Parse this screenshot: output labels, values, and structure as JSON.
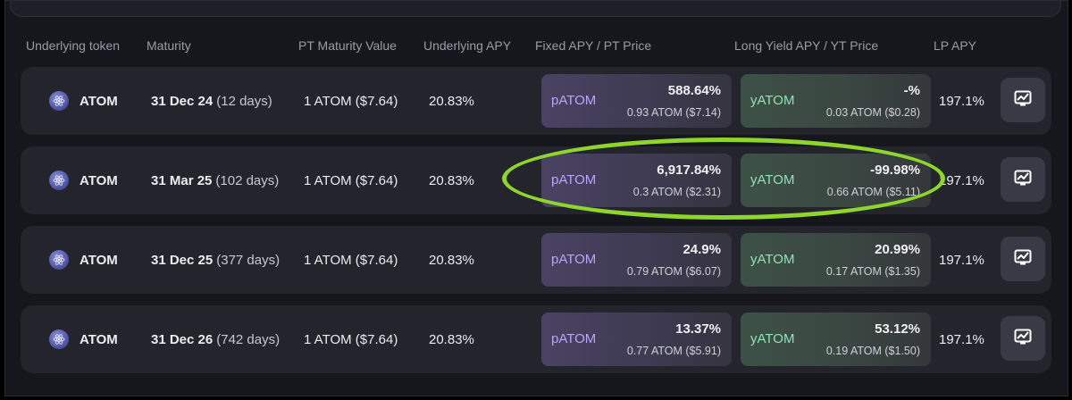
{
  "headers": {
    "underlying_token": "Underlying token",
    "maturity": "Maturity",
    "pt_maturity_value": "PT Maturity Value",
    "underlying_apy": "Underlying APY",
    "fixed_apy": "Fixed APY / PT Price",
    "long_yield_apy": "Long Yield APY / YT Price",
    "lp_apy": "LP APY"
  },
  "rows": [
    {
      "token": "ATOM",
      "maturity_date": "31 Dec 24",
      "maturity_days": "(12 days)",
      "pt_value": "1 ATOM ($7.64)",
      "underlying_apy": "20.83%",
      "pt": {
        "label": "pATOM",
        "apy": "588.64%",
        "price": "0.93 ATOM ($7.14)"
      },
      "yt": {
        "label": "yATOM",
        "apy": "-%",
        "price": "0.03 ATOM ($0.28)"
      },
      "lp_apy": "197.1%"
    },
    {
      "token": "ATOM",
      "maturity_date": "31 Mar 25",
      "maturity_days": "(102 days)",
      "pt_value": "1 ATOM ($7.64)",
      "underlying_apy": "20.83%",
      "pt": {
        "label": "pATOM",
        "apy": "6,917.84%",
        "price": "0.3 ATOM ($2.31)"
      },
      "yt": {
        "label": "yATOM",
        "apy": "-99.98%",
        "price": "0.66 ATOM ($5.11)"
      },
      "lp_apy": "197.1%"
    },
    {
      "token": "ATOM",
      "maturity_date": "31 Dec 25",
      "maturity_days": "(377 days)",
      "pt_value": "1 ATOM ($7.64)",
      "underlying_apy": "20.83%",
      "pt": {
        "label": "pATOM",
        "apy": "24.9%",
        "price": "0.79 ATOM ($6.07)"
      },
      "yt": {
        "label": "yATOM",
        "apy": "20.99%",
        "price": "0.17 ATOM ($1.35)"
      },
      "lp_apy": "197.1%"
    },
    {
      "token": "ATOM",
      "maturity_date": "31 Dec 26",
      "maturity_days": "(742 days)",
      "pt_value": "1 ATOM ($7.64)",
      "underlying_apy": "20.83%",
      "pt": {
        "label": "pATOM",
        "apy": "13.37%",
        "price": "0.77 ATOM ($5.91)"
      },
      "yt": {
        "label": "yATOM",
        "apy": "53.12%",
        "price": "0.19 ATOM ($1.50)"
      },
      "lp_apy": "197.1%"
    }
  ],
  "icons": {
    "token": "atom-token-icon",
    "chart_button": "chart-trend-icon"
  },
  "colors": {
    "background": "#16161d",
    "row": "#24242d",
    "pt_label": "#b7a6ff",
    "yt_label": "#8fe3b4",
    "highlight": "#8ed62c"
  }
}
